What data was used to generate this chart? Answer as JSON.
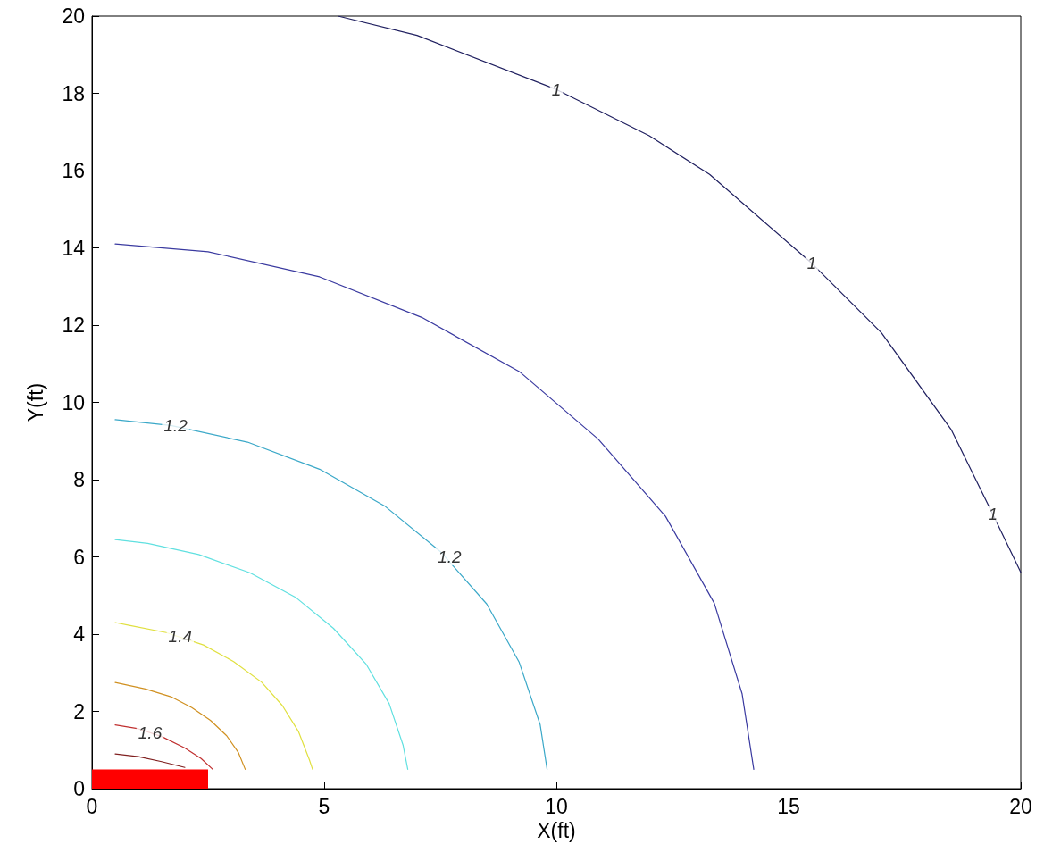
{
  "chart_data": {
    "type": "line",
    "xlabel": "X(ft)",
    "ylabel": "Y(ft)",
    "xlim": [
      0,
      20
    ],
    "xticks": [
      0,
      5,
      10,
      15,
      20
    ],
    "ylim": [
      0,
      20
    ],
    "yticks": [
      0,
      2,
      4,
      6,
      8,
      10,
      12,
      14,
      16,
      18,
      20
    ],
    "grid": false,
    "marker": "none",
    "line_style": "solid",
    "series": [
      {
        "color": "#202060",
        "x": [
          5.3,
          7,
          10,
          12,
          13.3,
          15.5,
          17,
          18.5,
          19.4,
          20
        ],
        "values": [
          20,
          19.5,
          18.1,
          16.9,
          15.9,
          13.6,
          11.8,
          9.3,
          7.1,
          5.6
        ]
      },
      {
        "color": "#3a3aa0",
        "x": [
          0.5,
          2.5,
          4.9,
          7.1,
          9.2,
          10.9,
          12.35,
          13.4,
          14.0,
          14.25
        ],
        "values": [
          14.1,
          13.9,
          13.25,
          12.2,
          10.8,
          9.05,
          7.05,
          4.8,
          2.45,
          0.5
        ]
      },
      {
        "color": "#3aa8c8",
        "x": [
          0.5,
          1.7,
          3.35,
          4.9,
          6.3,
          7.5,
          8.5,
          9.2,
          9.65,
          9.8
        ],
        "values": [
          9.55,
          9.4,
          8.97,
          8.27,
          7.32,
          6.14,
          4.78,
          3.27,
          1.66,
          0.5
        ]
      },
      {
        "color": "#60e0e0",
        "x": [
          0.5,
          1.2,
          2.3,
          3.4,
          4.4,
          5.2,
          5.9,
          6.4,
          6.7,
          6.8
        ],
        "values": [
          6.45,
          6.35,
          6.06,
          5.59,
          4.94,
          4.15,
          3.23,
          2.2,
          1.12,
          0.5
        ]
      },
      {
        "color": "#e0e040",
        "x": [
          0.5,
          0.8,
          1.6,
          2.4,
          3.05,
          3.65,
          4.1,
          4.45,
          4.68,
          4.75
        ],
        "values": [
          4.3,
          4.23,
          4.04,
          3.72,
          3.29,
          2.76,
          2.15,
          1.47,
          0.75,
          0.5
        ]
      },
      {
        "color": "#d09020",
        "x": [
          0.5,
          1.15,
          1.7,
          2.15,
          2.55,
          2.9,
          3.15,
          3.3
        ],
        "values": [
          2.75,
          2.58,
          2.38,
          2.1,
          1.77,
          1.37,
          0.94,
          0.5
        ]
      },
      {
        "color": "#c03030",
        "x": [
          0.5,
          1.0,
          1.5,
          2.0,
          2.35,
          2.6
        ],
        "values": [
          1.65,
          1.55,
          1.35,
          1.05,
          0.78,
          0.5
        ]
      },
      {
        "color": "#802020",
        "x": [
          0.5,
          1.0,
          1.5,
          2.0
        ],
        "values": [
          0.9,
          0.83,
          0.7,
          0.55
        ]
      },
      {
        "type": "area",
        "color": "#ff0000",
        "x": [
          0,
          2.5
        ],
        "values": [
          0.5,
          0.5
        ]
      }
    ],
    "annotations": [
      {
        "text": "1",
        "x": 10,
        "y": 18.1
      },
      {
        "text": "1",
        "x": 15.5,
        "y": 13.6
      },
      {
        "text": "1",
        "x": 19.4,
        "y": 7.1
      },
      {
        "text": "1.2",
        "x": 1.8,
        "y": 9.4
      },
      {
        "text": "1.2",
        "x": 7.7,
        "y": 6.0
      },
      {
        "text": "1.4",
        "x": 1.9,
        "y": 3.95
      },
      {
        "text": "1.6",
        "x": 1.25,
        "y": 1.45
      }
    ]
  }
}
